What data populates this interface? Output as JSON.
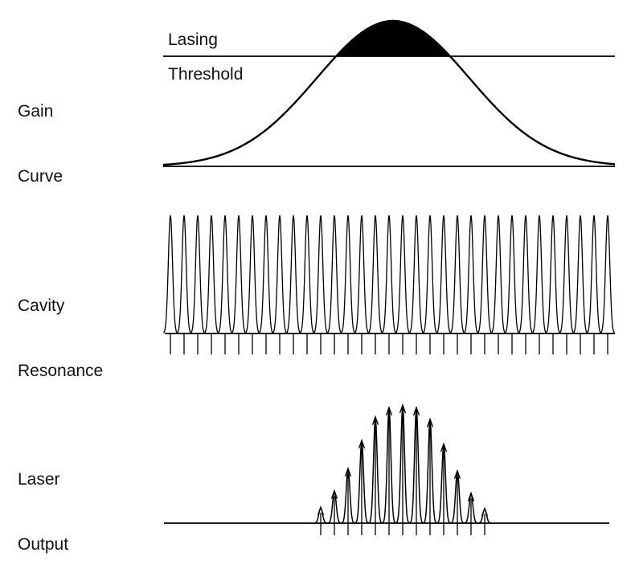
{
  "labels": {
    "gain_curve": [
      "Gain",
      "Curve"
    ],
    "cavity_resonance": [
      "Cavity",
      "Resonance"
    ],
    "laser_output": [
      "Laser",
      "Output"
    ],
    "lasing": "Lasing",
    "threshold": "Threshold"
  },
  "colors": {
    "ink": "#000000",
    "background": "#ffffff"
  },
  "cavity": {
    "mode_count": 33
  },
  "output": {
    "relative_peak_heights": [
      0.13,
      0.27,
      0.46,
      0.7,
      0.9,
      0.98,
      1.0,
      0.98,
      0.88,
      0.67,
      0.44,
      0.25,
      0.12
    ]
  }
}
